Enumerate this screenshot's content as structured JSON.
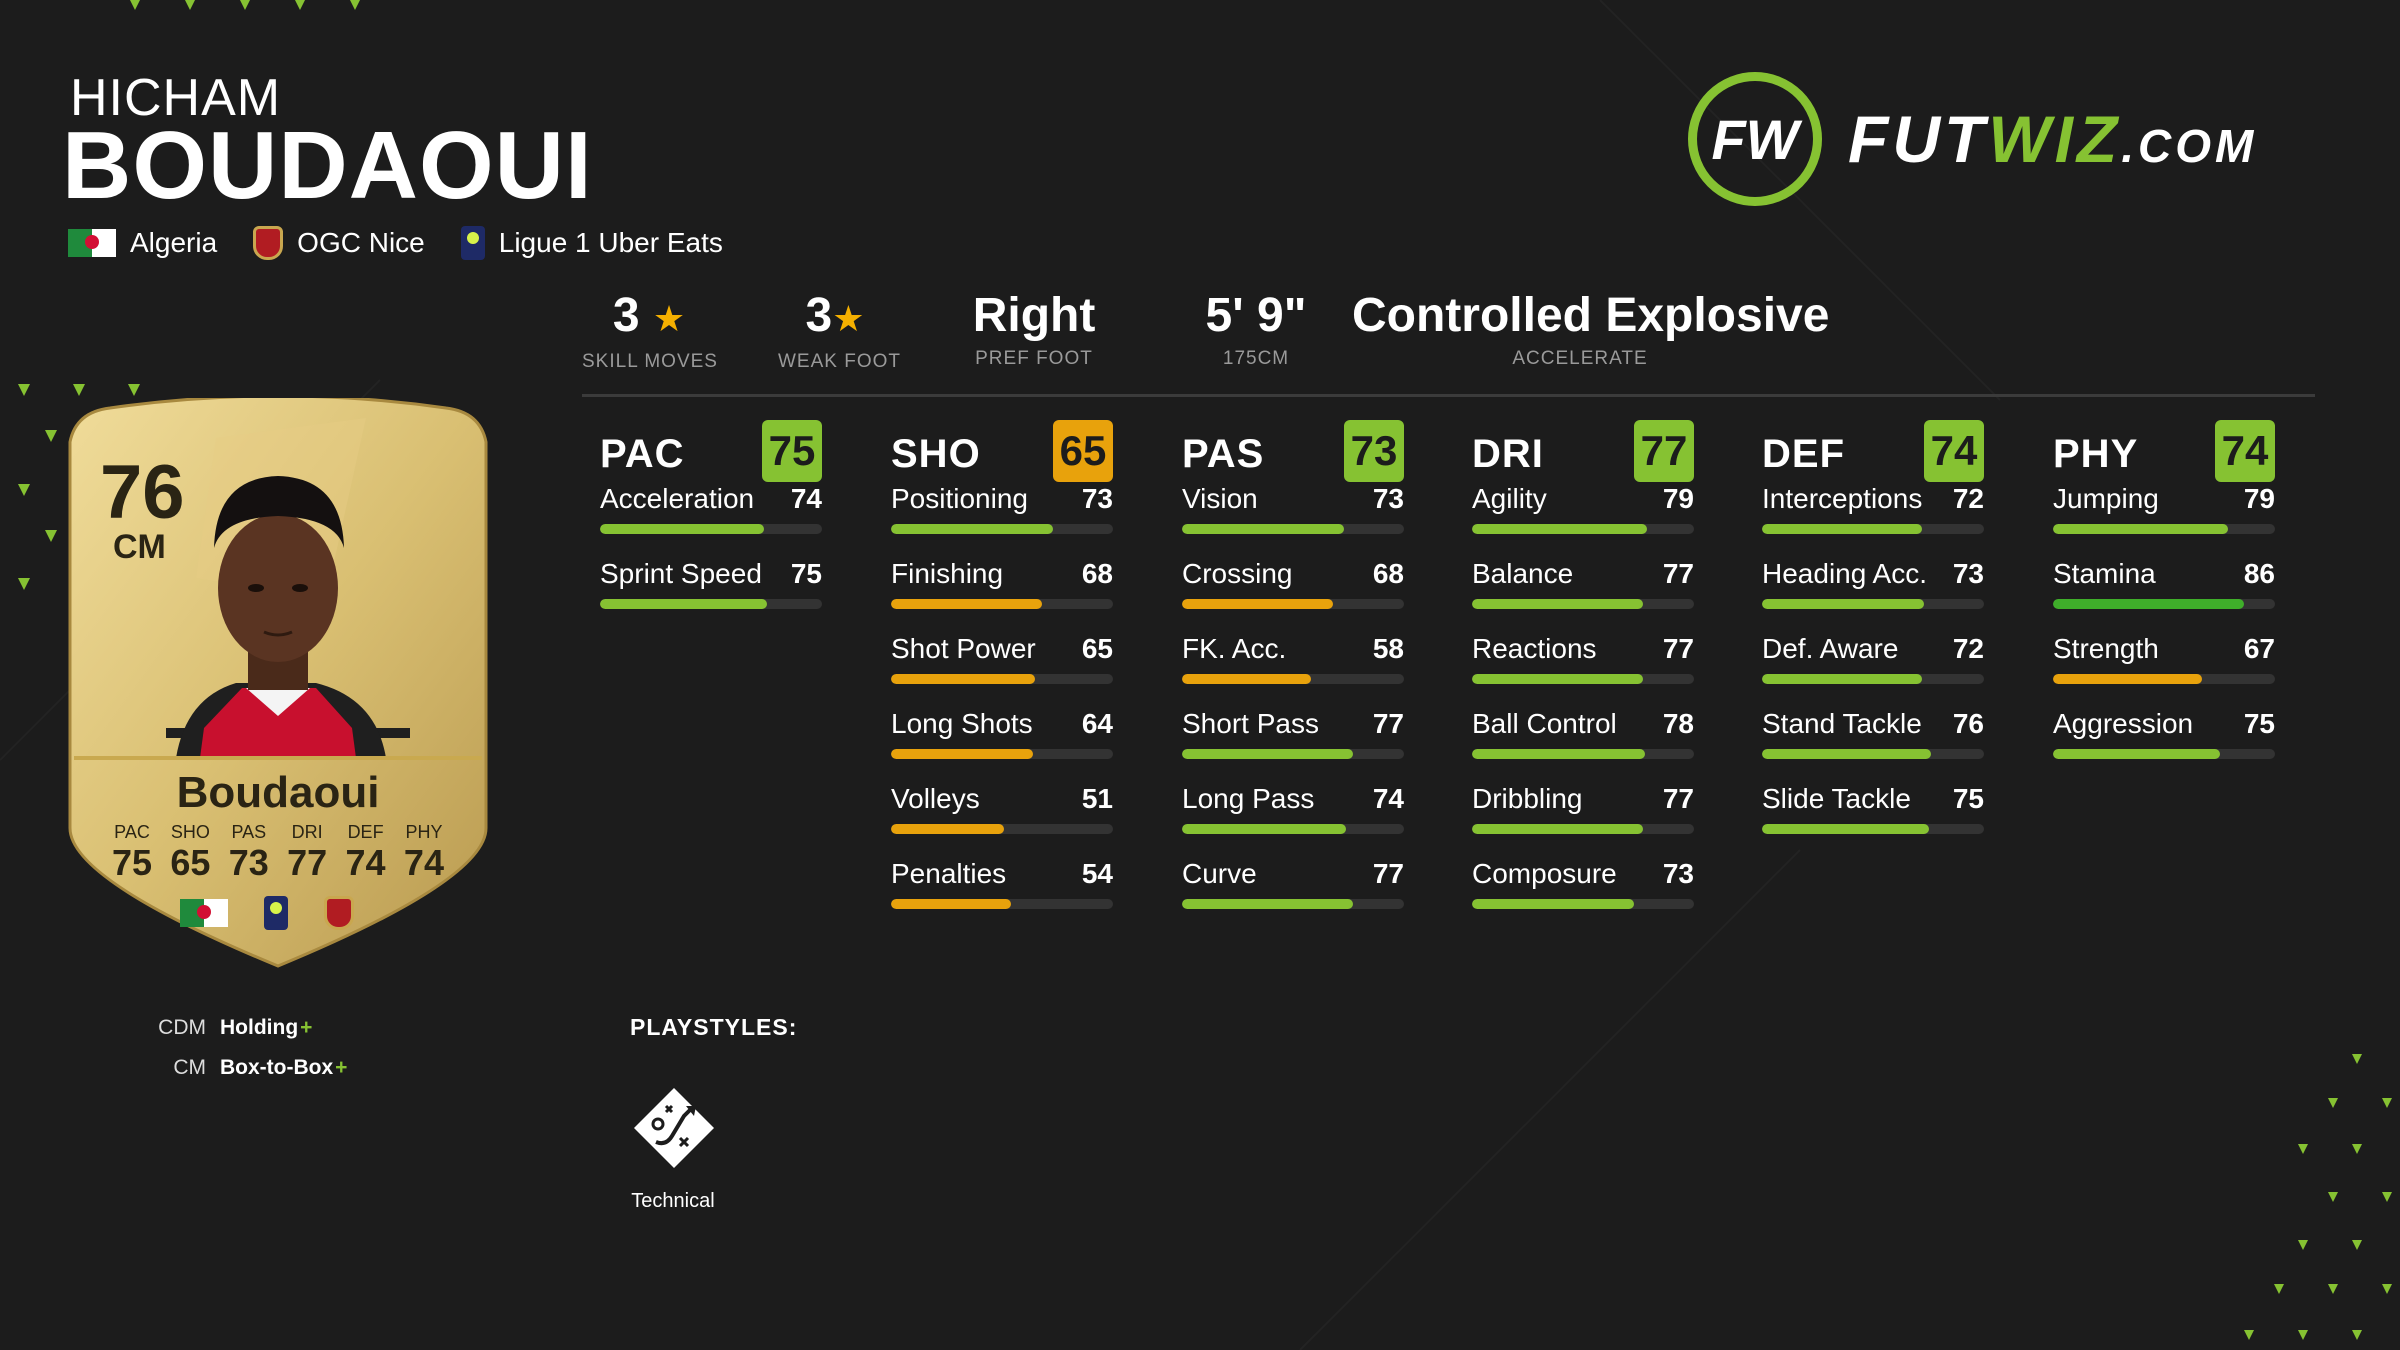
{
  "player": {
    "first_name": "HICHAM",
    "last_name": "BOUDAOUI",
    "nation": "Algeria",
    "club": "OGC Nice",
    "league": "Ligue 1 Uber Eats"
  },
  "logo": {
    "prefix": "FUT",
    "highlight": "WIZ",
    "suffix": ".COM",
    "monogram": "FW"
  },
  "info": [
    {
      "value": "3",
      "star": "★",
      "label": "SKILL MOVES"
    },
    {
      "value": "3",
      "star": "★",
      "label": "WEAK FOOT"
    },
    {
      "value": "Right",
      "star": "",
      "label": "PREF FOOT"
    },
    {
      "value": "5' 9\"",
      "star": "",
      "label": "175CM"
    },
    {
      "value": "Controlled Explosive",
      "star": "",
      "label": "ACCELERATE"
    }
  ],
  "categories": [
    {
      "name": "PAC",
      "rating": "75",
      "badge_color": "#86c232",
      "attributes": [
        {
          "name": "Acceleration",
          "value": 74
        },
        {
          "name": "Sprint Speed",
          "value": 75
        }
      ]
    },
    {
      "name": "SHO",
      "rating": "65",
      "badge_color": "#e8a20c",
      "attributes": [
        {
          "name": "Positioning",
          "value": 73
        },
        {
          "name": "Finishing",
          "value": 68
        },
        {
          "name": "Shot Power",
          "value": 65
        },
        {
          "name": "Long Shots",
          "value": 64
        },
        {
          "name": "Volleys",
          "value": 51
        },
        {
          "name": "Penalties",
          "value": 54
        }
      ]
    },
    {
      "name": "PAS",
      "rating": "73",
      "badge_color": "#86c232",
      "attributes": [
        {
          "name": "Vision",
          "value": 73
        },
        {
          "name": "Crossing",
          "value": 68
        },
        {
          "name": "FK. Acc.",
          "value": 58
        },
        {
          "name": "Short Pass",
          "value": 77
        },
        {
          "name": "Long Pass",
          "value": 74
        },
        {
          "name": "Curve",
          "value": 77
        }
      ]
    },
    {
      "name": "DRI",
      "rating": "77",
      "badge_color": "#86c232",
      "attributes": [
        {
          "name": "Agility",
          "value": 79
        },
        {
          "name": "Balance",
          "value": 77
        },
        {
          "name": "Reactions",
          "value": 77
        },
        {
          "name": "Ball Control",
          "value": 78
        },
        {
          "name": "Dribbling",
          "value": 77
        },
        {
          "name": "Composure",
          "value": 73
        }
      ]
    },
    {
      "name": "DEF",
      "rating": "74",
      "badge_color": "#86c232",
      "attributes": [
        {
          "name": "Interceptions",
          "value": 72
        },
        {
          "name": "Heading Acc.",
          "value": 73
        },
        {
          "name": "Def. Aware",
          "value": 72
        },
        {
          "name": "Stand Tackle",
          "value": 76
        },
        {
          "name": "Slide Tackle",
          "value": 75
        }
      ]
    },
    {
      "name": "PHY",
      "rating": "74",
      "badge_color": "#86c232",
      "attributes": [
        {
          "name": "Jumping",
          "value": 79
        },
        {
          "name": "Stamina",
          "value": 86
        },
        {
          "name": "Strength",
          "value": 67
        },
        {
          "name": "Aggression",
          "value": 75
        }
      ]
    }
  ],
  "card": {
    "rating": "76",
    "position": "CM",
    "name": "Boudaoui",
    "stats": [
      {
        "label": "PAC",
        "value": "75"
      },
      {
        "label": "SHO",
        "value": "65"
      },
      {
        "label": "PAS",
        "value": "73"
      },
      {
        "label": "DRI",
        "value": "77"
      },
      {
        "label": "DEF",
        "value": "74"
      },
      {
        "label": "PHY",
        "value": "74"
      }
    ]
  },
  "roles": [
    {
      "position": "CDM",
      "role": "Holding",
      "plus": "+"
    },
    {
      "position": "CM",
      "role": "Box-to-Box",
      "plus": "+"
    }
  ],
  "playstyles": {
    "title": "PLAYSTYLES:",
    "items": [
      {
        "name": "Technical",
        "icon": "technical-playstyle-icon"
      }
    ]
  },
  "colors": {
    "background": "#1c1c1c",
    "accent_green": "#86c232",
    "bar_green": "#86c232",
    "bar_dark_green": "#3fae2a",
    "bar_orange": "#e8a20c",
    "card_gold": "#d9bf72"
  }
}
